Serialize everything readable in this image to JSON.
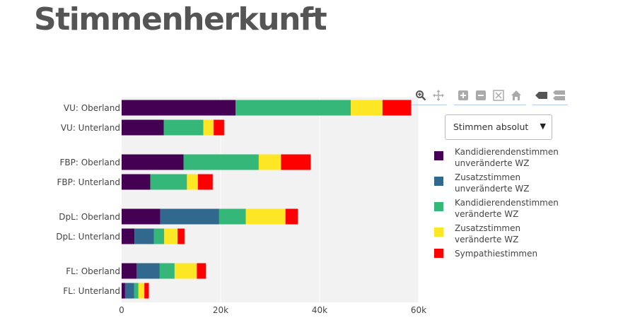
{
  "page": {
    "title": "Stimmenherkunft"
  },
  "controls": {
    "dropdown_selected": "Stimmen absolut",
    "modebar_icons": [
      "zoom-icon",
      "pan-icon",
      "zoom-in-icon",
      "zoom-out-icon",
      "autoscale-icon",
      "reset-axes-icon",
      "hover-closest-icon",
      "hover-compare-icon"
    ]
  },
  "colors": {
    "plot_bg": "#f2f2f2",
    "series": [
      "#440154",
      "#31688e",
      "#35b779",
      "#fde725",
      "#ff0000"
    ]
  },
  "chart_data": {
    "type": "bar",
    "orientation": "horizontal",
    "stacked": true,
    "title": "Stimmenherkunft",
    "xlabel": "",
    "ylabel": "",
    "xlim": [
      0,
      60000
    ],
    "xticks": [
      {
        "value": 0,
        "label": "0"
      },
      {
        "value": 20000,
        "label": "20k"
      },
      {
        "value": 40000,
        "label": "40k"
      },
      {
        "value": 60000,
        "label": "60k"
      }
    ],
    "categories": [
      {
        "label": "VU: Oberland",
        "group": 0
      },
      {
        "label": "VU: Unterland",
        "group": 0
      },
      {
        "label": "FBP: Oberland",
        "group": 1
      },
      {
        "label": "FBP: Unterland",
        "group": 1
      },
      {
        "label": "DpL: Oberland",
        "group": 2
      },
      {
        "label": "DpL: Unterland",
        "group": 2
      },
      {
        "label": "FL: Oberland",
        "group": 3
      },
      {
        "label": "FL: Unterland",
        "group": 3
      }
    ],
    "series": [
      {
        "name": "Kandidierendenstimmen\nunveränderte WZ",
        "values": [
          23000,
          8500,
          12500,
          5800,
          7800,
          2600,
          3000,
          700
        ]
      },
      {
        "name": "Zusatzstimmen\nunveränderte WZ",
        "values": [
          0,
          0,
          0,
          0,
          11900,
          3900,
          4700,
          1800
        ]
      },
      {
        "name": "Kandidierendenstimmen\nveränderte WZ",
        "values": [
          23300,
          8000,
          15200,
          7400,
          5400,
          2100,
          3000,
          900
        ]
      },
      {
        "name": "Zusatzstimmen\nveränderte WZ",
        "values": [
          6400,
          2100,
          4500,
          2200,
          8000,
          2700,
          4500,
          1200
        ]
      },
      {
        "name": "Sympathiestimmen",
        "values": [
          5800,
          2100,
          6000,
          3000,
          2500,
          1400,
          1800,
          900
        ]
      }
    ],
    "legend_position": "right"
  }
}
